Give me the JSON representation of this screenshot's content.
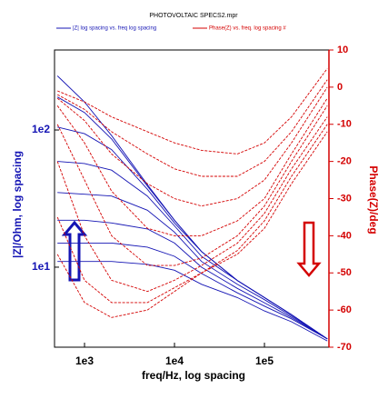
{
  "chart_data": {
    "type": "line",
    "title": "PHOTOVOLTAIC SPECS2.mpr",
    "xlabel": "freq/Hz, log spacing",
    "ylabel": "|Z|/Ohm, log spacing",
    "y2label": "Phase(Z)/deg",
    "xscale": "log",
    "yscale": "log",
    "xlim": [
      464,
      521000
    ],
    "ylim": [
      2.61,
      383
    ],
    "y2lim": [
      -70,
      10
    ],
    "xticks": [
      {
        "value": 1000,
        "label": "1e3"
      },
      {
        "value": 10000,
        "label": "1e4"
      },
      {
        "value": 100000,
        "label": "1e5"
      }
    ],
    "yticks": [
      {
        "value": 10,
        "label": "1e1"
      },
      {
        "value": 100,
        "label": "1e2"
      }
    ],
    "y2ticks": [
      -70,
      -60,
      -50,
      -40,
      -30,
      -20,
      -10,
      0,
      10
    ],
    "legend": "top",
    "x": [
      500,
      1000,
      2000,
      5000,
      10000,
      20000,
      50000,
      100000,
      200000,
      500000
    ],
    "series": [
      {
        "name": "|Z| log spacing vs. freq log spacing",
        "color": "#1414b4",
        "axis": "y",
        "values": [
          [
            248,
            160,
            91,
            40,
            22,
            13,
            8,
            6,
            4.5,
            3
          ],
          [
            174,
            134,
            86,
            39,
            22,
            13,
            8,
            6,
            4.5,
            3
          ],
          [
            105,
            94,
            72,
            37,
            21,
            13,
            8,
            6,
            4.5,
            3
          ],
          [
            59,
            57,
            51,
            33,
            20,
            12,
            8,
            6,
            4.5,
            3
          ],
          [
            35,
            34,
            33,
            26,
            18,
            11,
            7.5,
            5.8,
            4.4,
            3
          ],
          [
            22,
            22,
            21,
            19,
            15,
            10,
            7,
            5.5,
            4.3,
            3
          ],
          [
            15,
            15,
            15,
            14,
            12,
            9,
            6.5,
            5.2,
            4.2,
            3
          ],
          [
            11,
            11,
            11,
            10.5,
            9.5,
            7.5,
            6,
            4.8,
            4,
            2.9
          ]
        ]
      },
      {
        "name": "Phase(Z) vs. freq. log spacing #",
        "color": "#d40000",
        "axis": "y2",
        "values": [
          [
            -1,
            -4,
            -8,
            -12,
            -15,
            -17,
            -18,
            -15,
            -8,
            5
          ],
          [
            -2,
            -6,
            -12,
            -18,
            -22,
            -24,
            -24,
            -20,
            -12,
            2
          ],
          [
            -3,
            -9,
            -18,
            -26,
            -30,
            -32,
            -30,
            -25,
            -15,
            0
          ],
          [
            -5,
            -15,
            -28,
            -38,
            -40,
            -40,
            -36,
            -30,
            -18,
            -3
          ],
          [
            -10,
            -25,
            -40,
            -48,
            -48,
            -46,
            -40,
            -32,
            -20,
            -5
          ],
          [
            -20,
            -40,
            -52,
            -55,
            -52,
            -48,
            -42,
            -34,
            -22,
            -8
          ],
          [
            -35,
            -52,
            -58,
            -58,
            -54,
            -50,
            -44,
            -36,
            -24,
            -10
          ],
          [
            -45,
            -58,
            -62,
            -60,
            -55,
            -50,
            -45,
            -38,
            -26,
            -12
          ]
        ]
      }
    ]
  }
}
